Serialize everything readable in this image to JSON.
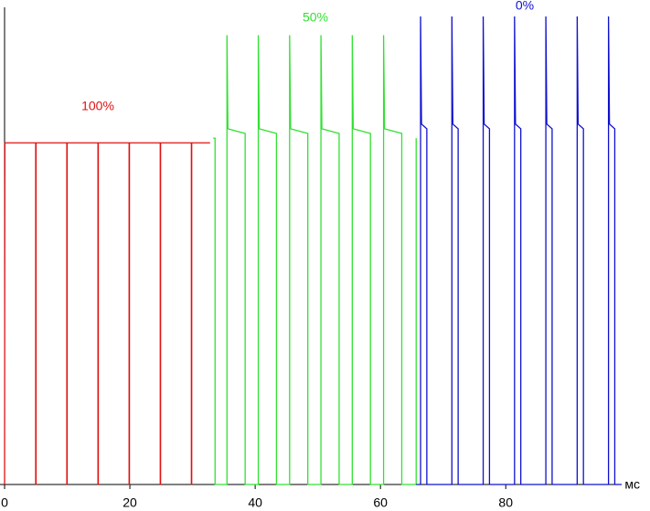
{
  "chart_data": {
    "type": "line",
    "x_label": "мс",
    "xlim": [
      0,
      98.5
    ],
    "xticks": [
      0,
      20,
      40,
      60,
      80
    ],
    "ylim": [
      0,
      100
    ],
    "series": [
      {
        "name": "100%",
        "color": "#e01010",
        "x": [
          0,
          0.05,
          4.97,
          4.97,
          5.02,
          5.02,
          9.94,
          9.94,
          9.99,
          9.99,
          14.91,
          14.91,
          14.96,
          14.96,
          19.88,
          19.88,
          19.93,
          19.93,
          24.85,
          24.85,
          24.9,
          24.9,
          29.82,
          29.82,
          29.87,
          29.87,
          32.8
        ],
        "values": [
          0,
          73,
          73,
          0,
          0,
          73,
          73,
          0,
          0,
          73,
          73,
          0,
          0,
          73,
          73,
          0,
          0,
          73,
          73,
          0,
          0,
          73,
          73,
          0,
          0,
          73,
          73
        ]
      },
      {
        "name": "50%",
        "color": "#33e033",
        "x": [
          33.3,
          33.6,
          33.6,
          35.5,
          35.5,
          35.65,
          38.4,
          38.4,
          40.5,
          40.5,
          40.65,
          43.4,
          43.4,
          45.5,
          45.5,
          45.65,
          48.4,
          48.4,
          50.5,
          50.5,
          50.65,
          53.4,
          53.4,
          55.5,
          55.5,
          55.65,
          58.4,
          58.4,
          60.5,
          60.5,
          60.65,
          63.4,
          63.4,
          65.7,
          65.7
        ],
        "values": [
          74,
          74,
          0,
          0,
          96,
          76,
          75,
          0,
          0,
          96,
          76,
          75,
          0,
          0,
          96,
          76,
          75,
          0,
          0,
          96,
          76,
          75,
          0,
          0,
          96,
          76,
          75,
          0,
          0,
          96,
          76,
          75,
          0,
          0,
          74
        ]
      },
      {
        "name": "0%",
        "color": "#1010d0",
        "x": [
          65.7,
          66.4,
          66.4,
          66.55,
          67.4,
          67.4,
          71.4,
          71.4,
          71.55,
          72.4,
          72.4,
          76.4,
          76.4,
          76.55,
          77.4,
          77.4,
          81.4,
          81.4,
          81.55,
          82.4,
          82.4,
          86.4,
          86.4,
          86.55,
          87.4,
          87.4,
          91.4,
          91.4,
          91.55,
          92.4,
          92.4,
          96.4,
          96.4,
          96.55,
          97.4,
          97.4,
          98.5
        ],
        "values": [
          0,
          0,
          100,
          77,
          76,
          0,
          0,
          100,
          77,
          76,
          0,
          0,
          100,
          77,
          76,
          0,
          0,
          100,
          77,
          76,
          0,
          0,
          100,
          77,
          76,
          0,
          0,
          100,
          77,
          76,
          0,
          0,
          100,
          77,
          76,
          0,
          0
        ]
      }
    ]
  }
}
